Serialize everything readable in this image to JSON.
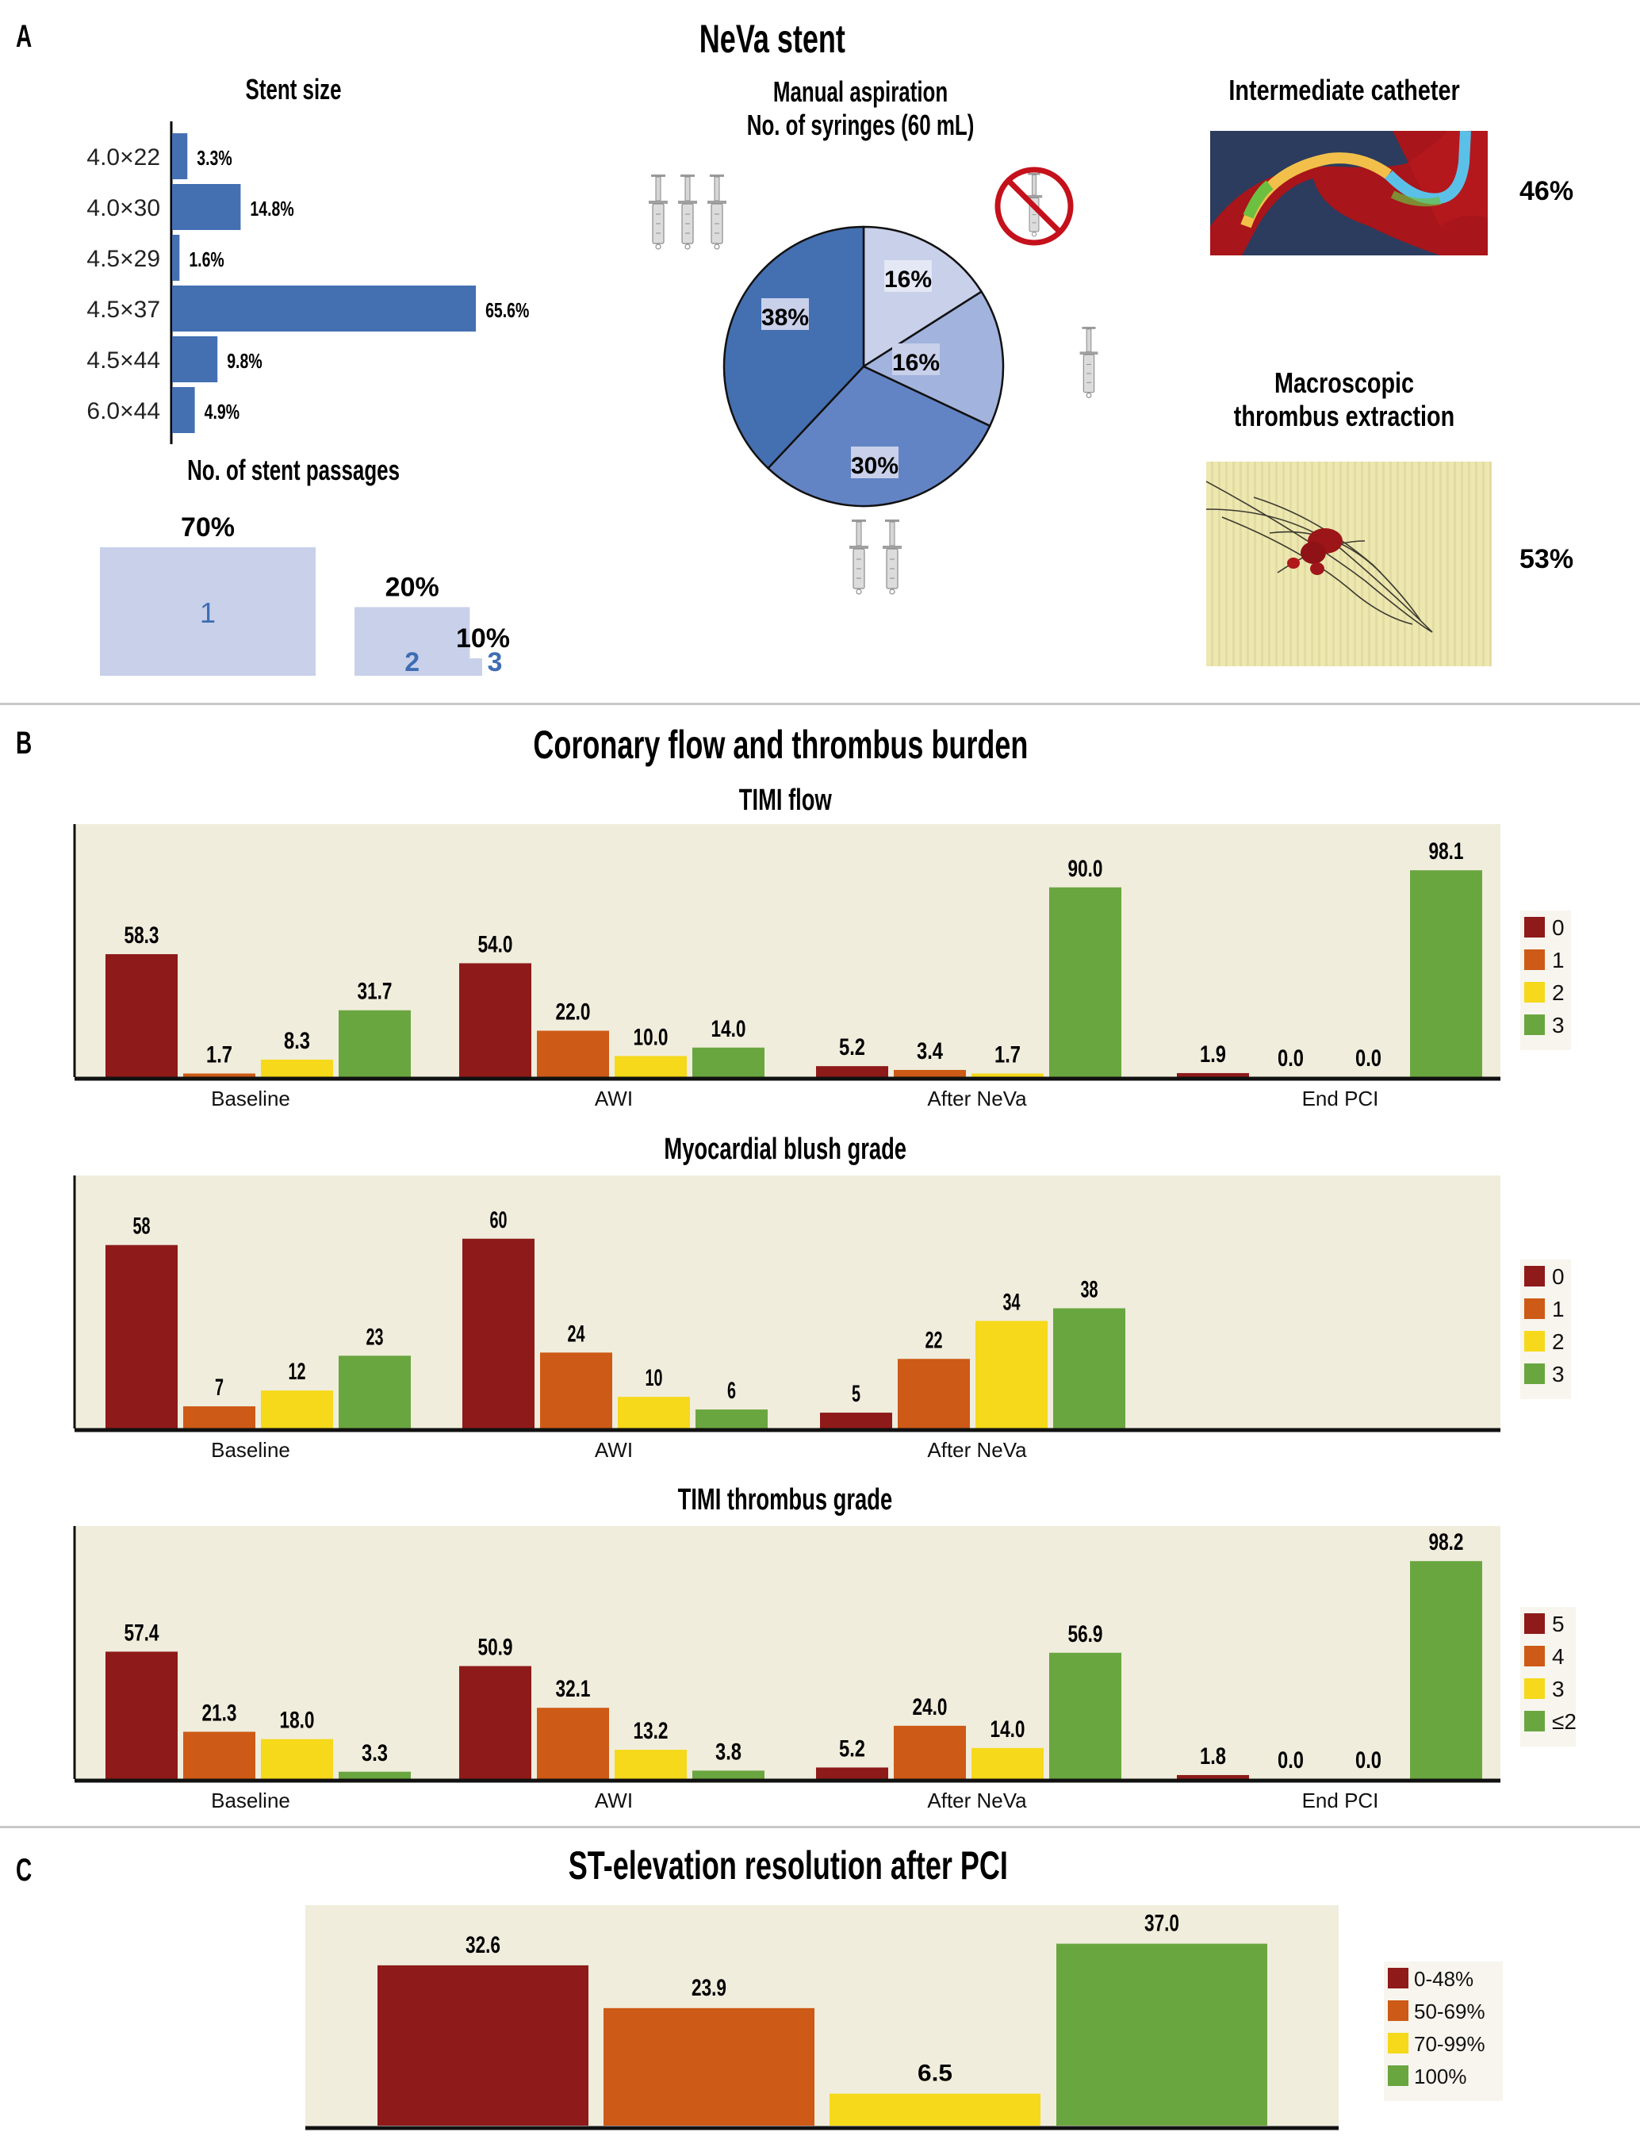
{
  "panels": {
    "A": {
      "letter": "A",
      "title": "NeVa stent"
    },
    "B": {
      "letter": "B",
      "title": "Coronary flow and thrombus burden"
    },
    "C": {
      "letter": "C",
      "title": "ST-elevation resolution after PCI"
    }
  },
  "colors": {
    "stent_bar": "#4470b2",
    "passage_box": "#c8d0ea",
    "passage_num": "#3f6db3",
    "plot_bg": "#f0eddc",
    "grade_dark_red": "#8e1a1a",
    "grade_orange": "#cd5a16",
    "grade_yellow": "#f5d91a",
    "grade_green": "#6aa640",
    "no_sign_red": "#c4111b"
  },
  "stent_size": {
    "title": "Stent size",
    "items": [
      {
        "label": "4.0×22",
        "value": 3.3,
        "text": "3.3%"
      },
      {
        "label": "4.0×30",
        "value": 14.8,
        "text": "14.8%"
      },
      {
        "label": "4.5×29",
        "value": 1.6,
        "text": "1.6%"
      },
      {
        "label": "4.5×37",
        "value": 65.6,
        "text": "65.6%"
      },
      {
        "label": "4.5×44",
        "value": 9.8,
        "text": "9.8%"
      },
      {
        "label": "6.0×44",
        "value": 4.9,
        "text": "4.9%"
      }
    ]
  },
  "stent_passages": {
    "title": "No. of stent passages",
    "items": [
      {
        "number": "1",
        "value": 70,
        "text": "70%"
      },
      {
        "number": "2",
        "value": 20,
        "text": "20%"
      },
      {
        "number": "3",
        "value": 10,
        "text": "10%"
      }
    ]
  },
  "manual_aspiration": {
    "title_line1": "Manual aspiration",
    "title_line2": "No. of syringes (60 mL)",
    "slices": [
      {
        "syringes": "0",
        "value": 16,
        "text": "16%",
        "color": "#c8d0ea"
      },
      {
        "syringes": "1",
        "value": 16,
        "text": "16%",
        "color": "#a2b3dd"
      },
      {
        "syringes": "2",
        "value": 30,
        "text": "30%",
        "color": "#6384c4"
      },
      {
        "syringes": "3",
        "value": 38,
        "text": "38%",
        "color": "#4470b2"
      }
    ]
  },
  "intermediate_catheter": {
    "title": "Intermediate catheter",
    "value": "46%"
  },
  "thrombus_extraction": {
    "title_line1": "Macroscopic",
    "title_line2": "thrombus extraction",
    "value": "53%"
  },
  "chart_data": [
    {
      "id": "timi_flow",
      "type": "bar",
      "title": "TIMI flow",
      "categories": [
        "Baseline",
        "AWI",
        "After NeVa",
        "End PCI"
      ],
      "ylim": [
        0,
        120
      ],
      "legend_position": "right",
      "series": [
        {
          "name": "0",
          "color": "#8e1a1a",
          "values": [
            58.3,
            54.0,
            5.2,
            1.9
          ],
          "labels": [
            "58.3",
            "54.0",
            "5.2",
            "1.9"
          ]
        },
        {
          "name": "1",
          "color": "#cd5a16",
          "values": [
            1.7,
            22.0,
            3.4,
            0.0
          ],
          "labels": [
            "1.7",
            "22.0",
            "3.4",
            "0.0"
          ]
        },
        {
          "name": "2",
          "color": "#f5d91a",
          "values": [
            8.3,
            10.0,
            1.7,
            0.0
          ],
          "labels": [
            "8.3",
            "10.0",
            "1.7",
            "0.0"
          ]
        },
        {
          "name": "3",
          "color": "#6aa640",
          "values": [
            31.7,
            14.0,
            90.0,
            98.1
          ],
          "labels": [
            "31.7",
            "14.0",
            "90.0",
            "98.1"
          ]
        }
      ]
    },
    {
      "id": "myocardial_blush",
      "type": "bar",
      "title": "Myocardial blush grade",
      "categories": [
        "Baseline",
        "AWI",
        "After NeVa"
      ],
      "ylim": [
        0,
        80
      ],
      "legend_position": "right",
      "series": [
        {
          "name": "0",
          "color": "#8e1a1a",
          "values": [
            58,
            60,
            5
          ],
          "labels": [
            "58",
            "60",
            "5"
          ]
        },
        {
          "name": "1",
          "color": "#cd5a16",
          "values": [
            7,
            24,
            22
          ],
          "labels": [
            "7",
            "24",
            "22"
          ]
        },
        {
          "name": "2",
          "color": "#f5d91a",
          "values": [
            12,
            10,
            34
          ],
          "labels": [
            "12",
            "10",
            "34"
          ]
        },
        {
          "name": "3",
          "color": "#6aa640",
          "values": [
            23,
            6,
            38
          ],
          "labels": [
            "23",
            "6",
            "38"
          ]
        }
      ]
    },
    {
      "id": "timi_thrombus",
      "type": "bar",
      "title": "TIMI thrombus grade",
      "categories": [
        "Baseline",
        "AWI",
        "After NeVa",
        "End PCI"
      ],
      "ylim": [
        0,
        114
      ],
      "legend_position": "right",
      "series": [
        {
          "name": "5",
          "color": "#8e1a1a",
          "values": [
            57.4,
            50.9,
            5.2,
            1.8
          ],
          "labels": [
            "57.4",
            "50.9",
            "5.2",
            "1.8"
          ]
        },
        {
          "name": "4",
          "color": "#cd5a16",
          "values": [
            21.3,
            32.1,
            24.0,
            0.0
          ],
          "labels": [
            "21.3",
            "32.1",
            "24.0",
            "0.0"
          ]
        },
        {
          "name": "3",
          "color": "#f5d91a",
          "values": [
            18.0,
            13.2,
            14.0,
            0.0
          ],
          "labels": [
            "18.0",
            "13.2",
            "14.0",
            "0.0"
          ]
        },
        {
          "name": "≤2",
          "color": "#6aa640",
          "values": [
            3.3,
            3.8,
            56.9,
            98.2
          ],
          "labels": [
            "3.3",
            "3.8",
            "56.9",
            "98.2"
          ]
        }
      ]
    },
    {
      "id": "st_resolution",
      "type": "bar",
      "title": "ST-elevation resolution after PCI",
      "categories": [
        "0-48%",
        "50-69%",
        "70-99%",
        "100%"
      ],
      "ylim": [
        0,
        45
      ],
      "legend_position": "right",
      "series": [
        {
          "name": "0-48%",
          "color": "#8e1a1a",
          "values": [
            32.6
          ],
          "labels": [
            "32.6"
          ]
        },
        {
          "name": "50-69%",
          "color": "#cd5a16",
          "values": [
            23.9
          ],
          "labels": [
            "23.9"
          ]
        },
        {
          "name": "70-99%",
          "color": "#f5d91a",
          "values": [
            6.5
          ],
          "labels": [
            "6.5"
          ]
        },
        {
          "name": "100%",
          "color": "#6aa640",
          "values": [
            37.0
          ],
          "labels": [
            "37.0"
          ]
        }
      ]
    }
  ]
}
